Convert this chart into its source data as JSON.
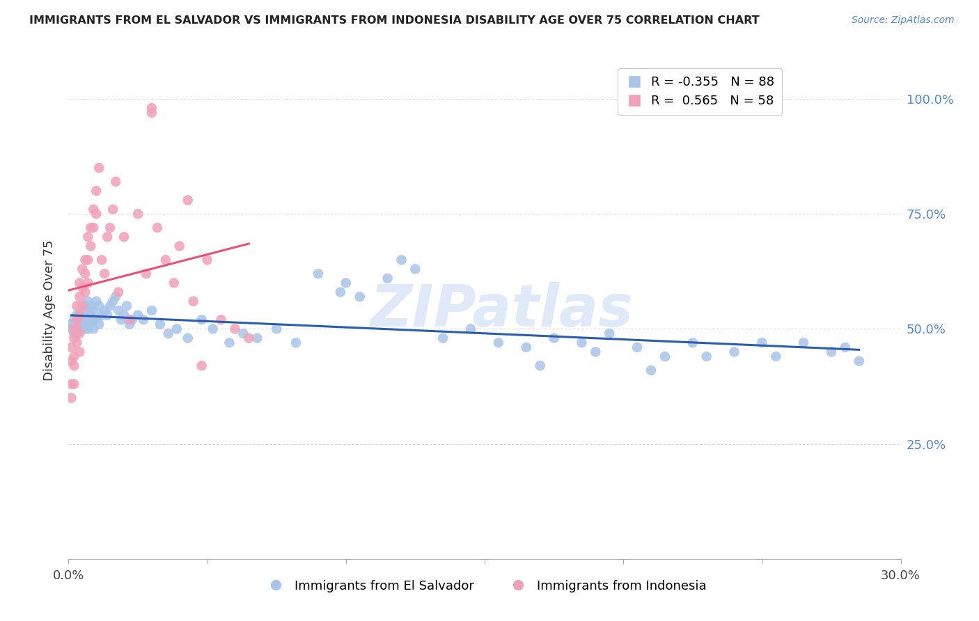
{
  "title": "IMMIGRANTS FROM EL SALVADOR VS IMMIGRANTS FROM INDONESIA DISABILITY AGE OVER 75 CORRELATION CHART",
  "source": "Source: ZipAtlas.com",
  "ylabel": "Disability Age Over 75",
  "y_tick_labels": [
    "",
    "25.0%",
    "50.0%",
    "75.0%",
    "100.0%"
  ],
  "x_lim": [
    0.0,
    0.3
  ],
  "y_lim": [
    0.0,
    1.08
  ],
  "legend_r_blue": "-0.355",
  "legend_n_blue": "88",
  "legend_r_pink": "0.565",
  "legend_n_pink": "58",
  "series_blue_label": "Immigrants from El Salvador",
  "series_pink_label": "Immigrants from Indonesia",
  "color_blue": "#a8c4e8",
  "color_pink": "#f0a0b8",
  "line_color_blue": "#2a5db0",
  "line_color_pink": "#e8507a",
  "watermark": "ZIPatlas",
  "blue_x": [
    0.001,
    0.001,
    0.002,
    0.002,
    0.002,
    0.003,
    0.003,
    0.003,
    0.003,
    0.004,
    0.004,
    0.004,
    0.005,
    0.005,
    0.005,
    0.005,
    0.006,
    0.006,
    0.006,
    0.006,
    0.007,
    0.007,
    0.007,
    0.007,
    0.008,
    0.008,
    0.008,
    0.009,
    0.009,
    0.009,
    0.01,
    0.01,
    0.011,
    0.011,
    0.012,
    0.013,
    0.014,
    0.015,
    0.016,
    0.017,
    0.018,
    0.019,
    0.02,
    0.021,
    0.022,
    0.023,
    0.025,
    0.027,
    0.03,
    0.033,
    0.036,
    0.039,
    0.043,
    0.048,
    0.052,
    0.058,
    0.063,
    0.068,
    0.075,
    0.082,
    0.09,
    0.098,
    0.105,
    0.115,
    0.125,
    0.135,
    0.145,
    0.155,
    0.165,
    0.175,
    0.185,
    0.195,
    0.205,
    0.215,
    0.225,
    0.24,
    0.255,
    0.265,
    0.275,
    0.285,
    0.1,
    0.12,
    0.17,
    0.19,
    0.21,
    0.23,
    0.25,
    0.28
  ],
  "blue_y": [
    0.51,
    0.5,
    0.52,
    0.5,
    0.49,
    0.53,
    0.51,
    0.5,
    0.49,
    0.52,
    0.51,
    0.5,
    0.54,
    0.52,
    0.51,
    0.5,
    0.55,
    0.53,
    0.51,
    0.5,
    0.56,
    0.54,
    0.52,
    0.5,
    0.55,
    0.53,
    0.51,
    0.54,
    0.52,
    0.5,
    0.56,
    0.52,
    0.55,
    0.51,
    0.53,
    0.54,
    0.53,
    0.55,
    0.56,
    0.57,
    0.54,
    0.52,
    0.53,
    0.55,
    0.51,
    0.52,
    0.53,
    0.52,
    0.54,
    0.51,
    0.49,
    0.5,
    0.48,
    0.52,
    0.5,
    0.47,
    0.49,
    0.48,
    0.5,
    0.47,
    0.62,
    0.58,
    0.57,
    0.61,
    0.63,
    0.48,
    0.5,
    0.47,
    0.46,
    0.48,
    0.47,
    0.49,
    0.46,
    0.44,
    0.47,
    0.45,
    0.44,
    0.47,
    0.45,
    0.43,
    0.6,
    0.65,
    0.42,
    0.45,
    0.41,
    0.44,
    0.47,
    0.46
  ],
  "pink_x": [
    0.001,
    0.001,
    0.001,
    0.001,
    0.002,
    0.002,
    0.002,
    0.002,
    0.002,
    0.003,
    0.003,
    0.003,
    0.003,
    0.004,
    0.004,
    0.004,
    0.004,
    0.004,
    0.005,
    0.005,
    0.005,
    0.006,
    0.006,
    0.006,
    0.007,
    0.007,
    0.007,
    0.008,
    0.008,
    0.009,
    0.009,
    0.01,
    0.01,
    0.011,
    0.012,
    0.013,
    0.014,
    0.015,
    0.016,
    0.017,
    0.018,
    0.02,
    0.022,
    0.025,
    0.028,
    0.03,
    0.03,
    0.032,
    0.035,
    0.038,
    0.04,
    0.043,
    0.045,
    0.048,
    0.05,
    0.055,
    0.06,
    0.065
  ],
  "pink_y": [
    0.46,
    0.43,
    0.38,
    0.35,
    0.5,
    0.48,
    0.44,
    0.42,
    0.38,
    0.55,
    0.52,
    0.5,
    0.47,
    0.6,
    0.57,
    0.53,
    0.49,
    0.45,
    0.63,
    0.59,
    0.55,
    0.65,
    0.62,
    0.58,
    0.7,
    0.65,
    0.6,
    0.72,
    0.68,
    0.76,
    0.72,
    0.8,
    0.75,
    0.85,
    0.65,
    0.62,
    0.7,
    0.72,
    0.76,
    0.82,
    0.58,
    0.7,
    0.52,
    0.75,
    0.62,
    0.97,
    0.98,
    0.72,
    0.65,
    0.6,
    0.68,
    0.78,
    0.56,
    0.42,
    0.65,
    0.52,
    0.5,
    0.48
  ]
}
